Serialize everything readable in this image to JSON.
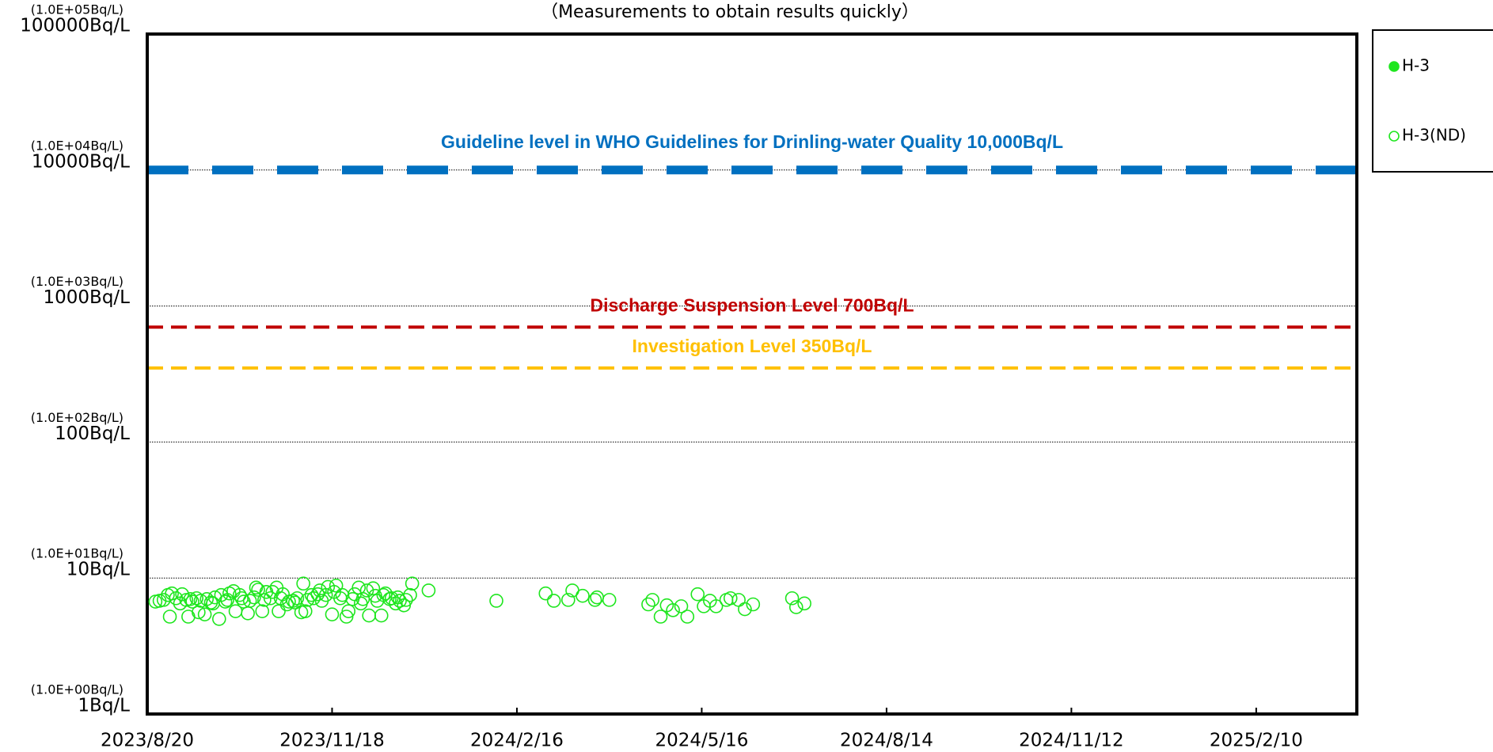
{
  "chart_data": {
    "type": "scatter",
    "title": "（Measurements to obtain results quickly）",
    "log_y": true,
    "grid": true,
    "legend": "upper right outside",
    "xlim": [
      "2023/8/20",
      "2025/3/31"
    ],
    "xticks": [
      "2023/8/20",
      "2023/11/18",
      "2024/2/16",
      "2024/5/16",
      "2024/8/14",
      "2024/11/12",
      "2025/2/10"
    ],
    "ylim": [
      1,
      100000
    ],
    "yticks": [
      {
        "value": 1,
        "label": "1Bq/L",
        "sublabel": "(1.0E+00Bq/L)"
      },
      {
        "value": 10,
        "label": "10Bq/L",
        "sublabel": "(1.0E+01Bq/L)"
      },
      {
        "value": 100,
        "label": "100Bq/L",
        "sublabel": "(1.0E+02Bq/L)"
      },
      {
        "value": 1000,
        "label": "1000Bq/L",
        "sublabel": "(1.0E+03Bq/L)"
      },
      {
        "value": 10000,
        "label": "10000Bq/L",
        "sublabel": "(1.0E+04Bq/L)"
      },
      {
        "value": 100000,
        "label": "100000Bq/L",
        "sublabel": "(1.0E+05Bq/L)"
      }
    ],
    "reference_lines": [
      {
        "value": 10000,
        "label": "Guideline level in WHO Guidelines for Drinling-water Quality 10,000Bq/L",
        "color": "#0070c0"
      },
      {
        "value": 700,
        "label": "Discharge Suspension Level 700Bq/L",
        "color": "#c00000"
      },
      {
        "value": 350,
        "label": "Investigation Level 350Bq/L",
        "color": "#ffc000"
      }
    ],
    "series": [
      {
        "name": "H-3",
        "color": "#1ee61e",
        "marker": "filled",
        "x": [],
        "values": []
      },
      {
        "name": "H-3(ND)",
        "color": "#1ee61e",
        "marker": "open",
        "x": [
          "2023/8/24",
          "2023/8/26",
          "2023/8/28",
          "2023/8/30",
          "2023/8/31",
          "2023/9/1",
          "2023/9/3",
          "2023/9/5",
          "2023/9/6",
          "2023/9/8",
          "2023/9/9",
          "2023/9/10",
          "2023/9/11",
          "2023/9/13",
          "2023/9/14",
          "2023/9/15",
          "2023/9/17",
          "2023/9/18",
          "2023/9/20",
          "2023/9/21",
          "2023/9/22",
          "2023/9/24",
          "2023/9/25",
          "2023/9/27",
          "2023/9/28",
          "2023/9/29",
          "2023/10/1",
          "2023/10/2",
          "2023/10/4",
          "2023/10/5",
          "2023/10/6",
          "2023/10/8",
          "2023/10/9",
          "2023/10/11",
          "2023/10/12",
          "2023/10/13",
          "2023/10/15",
          "2023/10/16",
          "2023/10/17",
          "2023/10/19",
          "2023/10/20",
          "2023/10/22",
          "2023/10/23",
          "2023/10/24",
          "2023/10/25",
          "2023/10/27",
          "2023/10/28",
          "2023/10/30",
          "2023/10/31",
          "2023/11/1",
          "2023/11/3",
          "2023/11/4",
          "2023/11/5",
          "2023/11/6",
          "2023/11/8",
          "2023/11/9",
          "2023/11/11",
          "2023/11/12",
          "2023/11/13",
          "2023/11/15",
          "2023/11/16",
          "2023/11/18",
          "2023/11/19",
          "2023/11/20",
          "2023/11/22",
          "2023/11/23",
          "2023/11/25",
          "2023/11/26",
          "2023/11/28",
          "2023/11/29",
          "2023/12/1",
          "2023/12/2",
          "2023/12/3",
          "2023/12/5",
          "2023/12/6",
          "2023/12/8",
          "2023/12/9",
          "2023/12/10",
          "2023/12/12",
          "2023/12/13",
          "2023/12/14",
          "2023/12/16",
          "2023/12/17",
          "2023/12/19",
          "2023/12/20",
          "2023/12/21",
          "2023/12/23",
          "2023/12/24",
          "2023/12/26",
          "2023/12/27",
          "2024/1/4",
          "2024/2/6",
          "2024/3/1",
          "2024/3/5",
          "2024/3/12",
          "2024/3/14",
          "2024/3/19",
          "2024/3/25",
          "2024/3/26",
          "2024/4/1",
          "2024/4/20",
          "2024/4/22",
          "2024/4/26",
          "2024/4/29",
          "2024/5/2",
          "2024/5/6",
          "2024/5/9",
          "2024/5/14",
          "2024/5/17",
          "2024/5/20",
          "2024/5/23",
          "2024/5/28",
          "2024/5/30",
          "2024/6/3",
          "2024/6/6",
          "2024/6/10",
          "2024/6/29",
          "2024/7/1",
          "2024/7/5"
        ],
        "values": [
          6.7,
          6.8,
          6.9,
          7.5,
          5.2,
          7.7,
          7.1,
          6.5,
          7.6,
          6.9,
          5.2,
          7.0,
          6.7,
          7.1,
          5.6,
          6.8,
          5.4,
          7.0,
          6.6,
          6.5,
          7.2,
          5.0,
          7.5,
          6.7,
          6.9,
          7.7,
          8.0,
          5.7,
          7.5,
          7.1,
          6.7,
          5.5,
          6.8,
          7.2,
          8.5,
          8.2,
          5.7,
          6.9,
          7.9,
          7.1,
          7.9,
          8.5,
          5.7,
          7.1,
          7.6,
          6.4,
          6.7,
          6.8,
          6.6,
          7.1,
          5.6,
          9.1,
          5.7,
          6.9,
          7.5,
          7.1,
          7.6,
          8.1,
          6.8,
          7.5,
          8.6,
          5.4,
          7.9,
          8.8,
          7.1,
          7.5,
          5.2,
          5.7,
          7.0,
          7.6,
          8.5,
          6.5,
          7.0,
          8.1,
          5.3,
          8.4,
          7.4,
          6.8,
          5.3,
          7.5,
          7.7,
          7.0,
          7.1,
          6.5,
          7.2,
          6.8,
          6.3,
          6.9,
          7.5,
          9.1,
          8.1,
          6.8,
          7.7,
          6.8,
          6.9,
          8.1,
          7.4,
          6.9,
          7.2,
          6.9,
          6.4,
          6.9,
          5.2,
          6.3,
          5.8,
          6.2,
          5.2,
          7.6,
          6.2,
          6.8,
          6.2,
          6.9,
          7.1,
          6.9,
          5.9,
          6.4,
          7.1,
          6.1,
          6.5
        ]
      }
    ]
  }
}
